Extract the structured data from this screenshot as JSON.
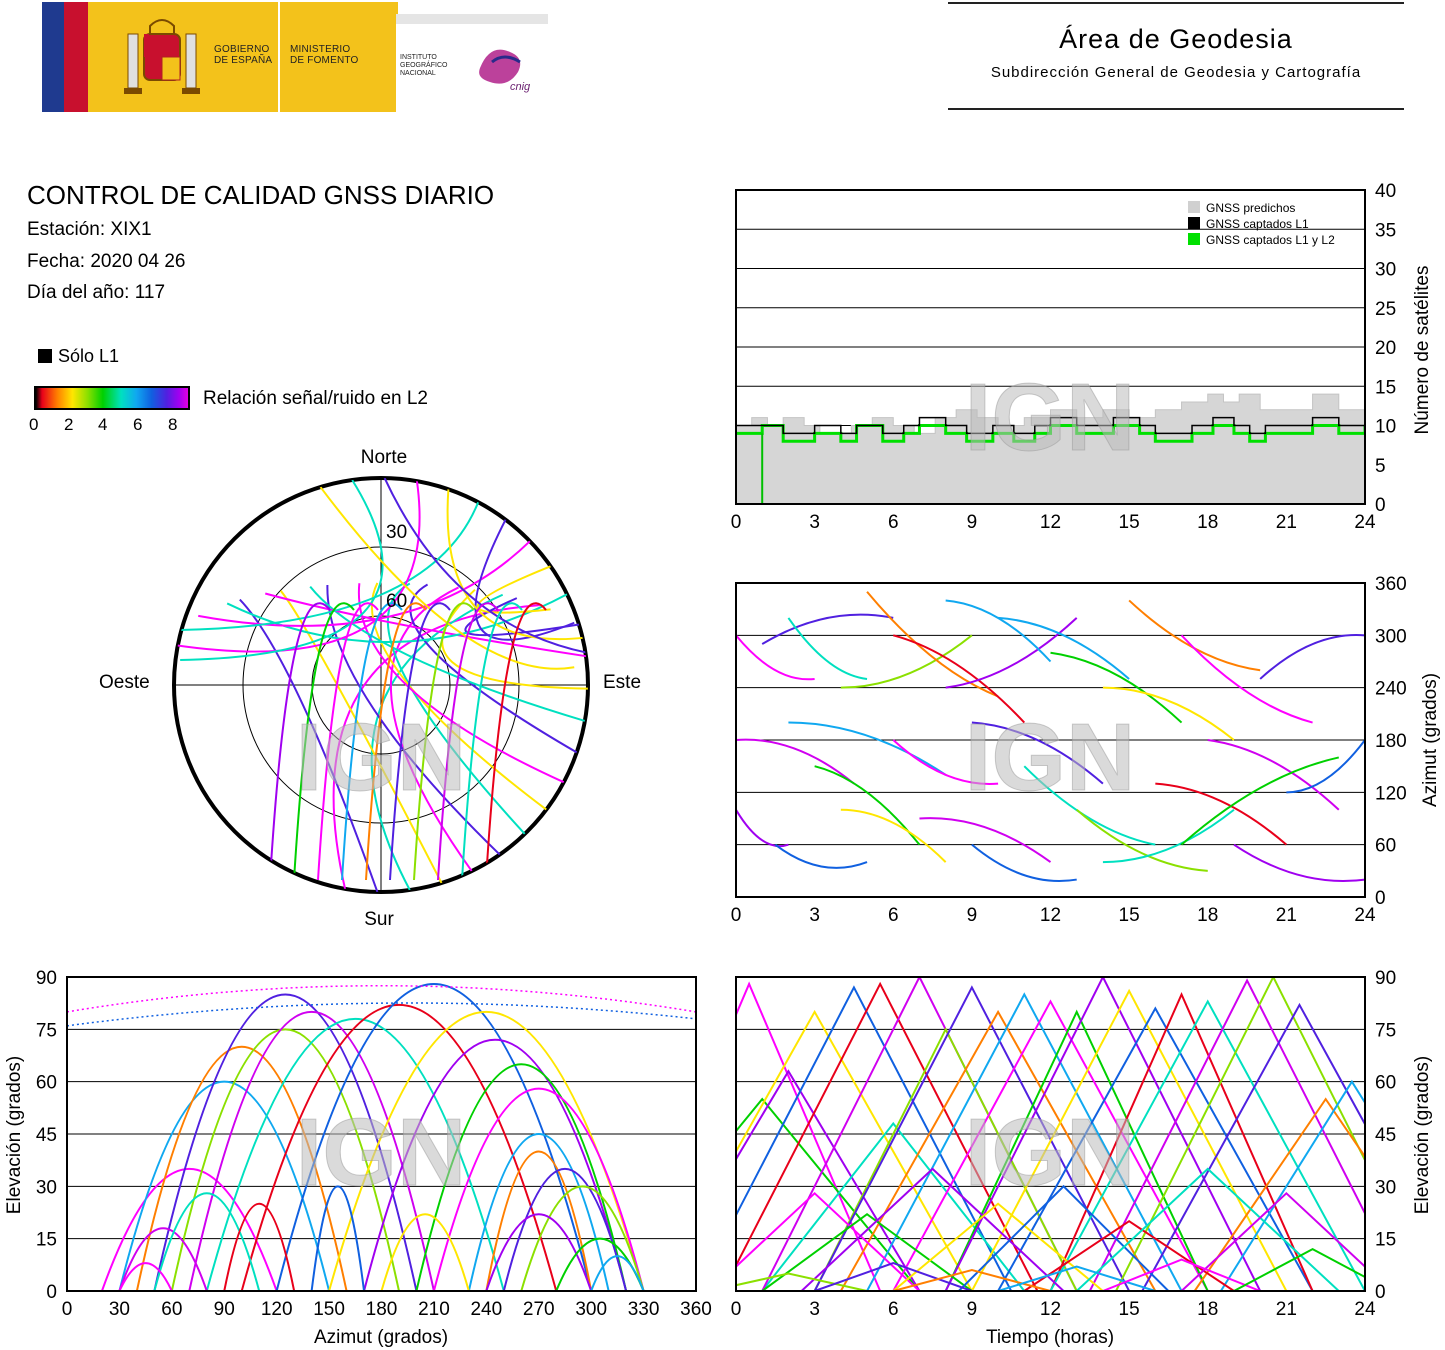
{
  "header": {
    "gov_label_1": "GOBIERNO",
    "gov_label_2": "DE ESPAÑA",
    "ministry_1": "MINISTERIO",
    "ministry_2": "DE FOMENTO",
    "institute_1": "INSTITUTO",
    "institute_2": "GEOGRÁFICO",
    "institute_3": "NACIONAL",
    "cnig": "cnig",
    "area_title": "Área de Geodesia",
    "area_subtitle": "Subdirección General de Geodesia y Cartografía"
  },
  "report": {
    "title": "CONTROL DE CALIDAD GNSS DIARIO",
    "station": "Estación: XIX1",
    "date": "Fecha: 2020 04 26",
    "doy": "Día del año: 117"
  },
  "legend": {
    "l1_only": "Sólo L1",
    "snr_label": "Relación señal/ruido en L2",
    "snr_ticks": [
      "0",
      "2",
      "4",
      "6",
      "8"
    ]
  },
  "watermark": "IGN",
  "chart_data": [
    {
      "id": "skyplot",
      "type": "scatter",
      "title": "",
      "directions": {
        "north": "Norte",
        "south": "Sur",
        "east": "Este",
        "west": "Oeste"
      },
      "ring_labels": [
        "30",
        "60"
      ],
      "rings_deg": [
        30,
        60
      ]
    },
    {
      "id": "satellites",
      "type": "area",
      "ylabel": "Número de satélites",
      "xlim": [
        0,
        24
      ],
      "ylim": [
        0,
        40
      ],
      "xticks": [
        "0",
        "3",
        "6",
        "9",
        "12",
        "15",
        "18",
        "21",
        "24"
      ],
      "yticks": [
        "0",
        "5",
        "10",
        "15",
        "20",
        "25",
        "30",
        "35",
        "40"
      ],
      "legend": [
        "GNSS predichos",
        "GNSS captados L1",
        "GNSS captados L1 y L2"
      ],
      "legend_colors": [
        "#d0d0d0",
        "#000000",
        "#00e000"
      ],
      "predicted": [
        [
          0,
          10
        ],
        [
          0.6,
          11
        ],
        [
          1.2,
          10
        ],
        [
          1.8,
          11
        ],
        [
          2.6,
          10
        ],
        [
          3.2,
          9
        ],
        [
          4.4,
          10
        ],
        [
          5.2,
          11
        ],
        [
          6.0,
          10
        ],
        [
          6.8,
          9
        ],
        [
          7.6,
          11
        ],
        [
          8.4,
          12
        ],
        [
          9.2,
          11
        ],
        [
          10.0,
          10
        ],
        [
          11.0,
          11
        ],
        [
          12.0,
          12
        ],
        [
          13.0,
          11
        ],
        [
          14.0,
          12
        ],
        [
          15.0,
          11
        ],
        [
          16.0,
          12
        ],
        [
          17.0,
          13
        ],
        [
          18.0,
          14
        ],
        [
          18.6,
          13
        ],
        [
          19.2,
          14
        ],
        [
          20.0,
          12
        ],
        [
          21.0,
          12
        ],
        [
          22.0,
          14
        ],
        [
          23.0,
          12
        ],
        [
          24,
          11
        ]
      ],
      "captured_l1": [
        [
          0,
          10
        ],
        [
          1.0,
          10
        ],
        [
          1.8,
          9
        ],
        [
          3.0,
          10
        ],
        [
          4.0,
          9
        ],
        [
          4.6,
          10
        ],
        [
          5.6,
          9
        ],
        [
          6.4,
          10
        ],
        [
          7.0,
          11
        ],
        [
          8.0,
          10
        ],
        [
          8.8,
          9
        ],
        [
          9.8,
          10
        ],
        [
          10.6,
          9
        ],
        [
          11.4,
          10
        ],
        [
          12.0,
          11
        ],
        [
          13.0,
          10
        ],
        [
          14.4,
          11
        ],
        [
          15.4,
          10
        ],
        [
          16.0,
          9
        ],
        [
          17.4,
          10
        ],
        [
          18.2,
          11
        ],
        [
          19.0,
          10
        ],
        [
          19.6,
          9
        ],
        [
          20.2,
          10
        ],
        [
          21.0,
          10
        ],
        [
          22.0,
          11
        ],
        [
          23.0,
          10
        ],
        [
          24,
          11
        ]
      ],
      "captured_l1_l2": [
        [
          0,
          9
        ],
        [
          1.0,
          10
        ],
        [
          1.8,
          8
        ],
        [
          3.0,
          9
        ],
        [
          4.0,
          8
        ],
        [
          4.6,
          10
        ],
        [
          5.6,
          8
        ],
        [
          6.4,
          9
        ],
        [
          7.0,
          10
        ],
        [
          8.0,
          9
        ],
        [
          8.8,
          8
        ],
        [
          9.8,
          9
        ],
        [
          10.6,
          8
        ],
        [
          11.4,
          9
        ],
        [
          12.0,
          10
        ],
        [
          13.0,
          9
        ],
        [
          14.4,
          10
        ],
        [
          15.4,
          9
        ],
        [
          16.0,
          8
        ],
        [
          17.4,
          9
        ],
        [
          18.2,
          10
        ],
        [
          19.0,
          9
        ],
        [
          19.6,
          8
        ],
        [
          20.2,
          9
        ],
        [
          21.0,
          9
        ],
        [
          22.0,
          10
        ],
        [
          23.0,
          9
        ],
        [
          24,
          10
        ]
      ],
      "dropout": {
        "x": 1.0,
        "y": 0
      }
    },
    {
      "id": "azimuth_time",
      "type": "scatter",
      "ylabel": "Azimut (grados)",
      "xlim": [
        0,
        24
      ],
      "ylim": [
        0,
        360
      ],
      "xticks": [
        "0",
        "3",
        "6",
        "9",
        "12",
        "15",
        "18",
        "21",
        "24"
      ],
      "yticks": [
        "0",
        "60",
        "120",
        "180",
        "240",
        "300",
        "360"
      ]
    },
    {
      "id": "elevation_azimuth",
      "type": "scatter",
      "xlabel": "Azimut (grados)",
      "ylabel": "Elevación (grados)",
      "xlim": [
        0,
        360
      ],
      "ylim": [
        0,
        90
      ],
      "xticks": [
        "0",
        "30",
        "60",
        "90",
        "120",
        "150",
        "180",
        "210",
        "240",
        "270",
        "300",
        "330",
        "360"
      ],
      "yticks": [
        "0",
        "15",
        "30",
        "45",
        "60",
        "75",
        "90"
      ]
    },
    {
      "id": "elevation_time",
      "type": "scatter",
      "xlabel": "Tiempo (horas)",
      "ylabel": "Elevación (grados)",
      "xlim": [
        0,
        24
      ],
      "ylim": [
        0,
        90
      ],
      "xticks": [
        "0",
        "3",
        "6",
        "9",
        "12",
        "15",
        "18",
        "21",
        "24"
      ],
      "yticks": [
        "0",
        "15",
        "30",
        "45",
        "60",
        "75",
        "90"
      ]
    }
  ]
}
